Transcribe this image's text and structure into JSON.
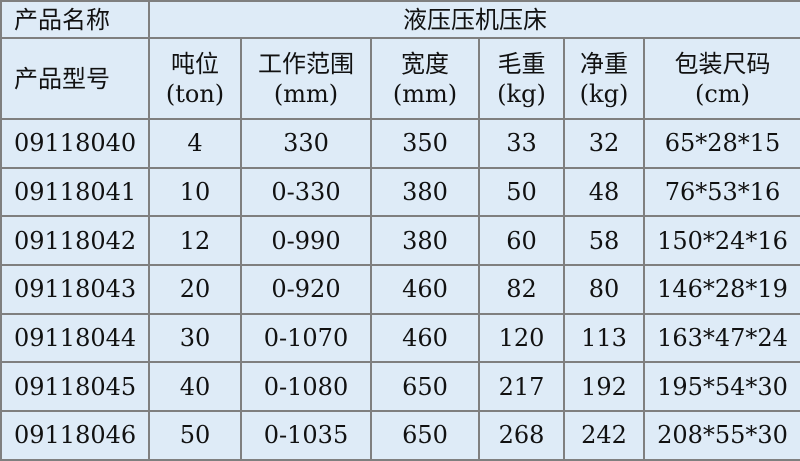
{
  "header": {
    "name_label": "产品名称",
    "name_value": "液压压机压床",
    "model_label": "产品型号",
    "columns": [
      {
        "title": "吨位",
        "unit": "(ton)"
      },
      {
        "title": "工作范围",
        "unit": "(mm)"
      },
      {
        "title": "宽度",
        "unit": "(mm)"
      },
      {
        "title": "毛重",
        "unit": "(kg)"
      },
      {
        "title": "净重",
        "unit": "(kg)"
      },
      {
        "title": "包装尺码",
        "unit": "(cm)"
      }
    ]
  },
  "rows": [
    [
      "09118040",
      "4",
      "330",
      "350",
      "33",
      "32",
      "65*28*15"
    ],
    [
      "09118041",
      "10",
      "0-330",
      "380",
      "50",
      "48",
      "76*53*16"
    ],
    [
      "09118042",
      "12",
      "0-990",
      "380",
      "60",
      "58",
      "150*24*16"
    ],
    [
      "09118043",
      "20",
      "0-920",
      "460",
      "82",
      "80",
      "146*28*19"
    ],
    [
      "09118044",
      "30",
      "0-1070",
      "460",
      "120",
      "113",
      "163*47*24"
    ],
    [
      "09118045",
      "40",
      "0-1080",
      "650",
      "217",
      "192",
      "195*54*30"
    ],
    [
      "09118046",
      "50",
      "0-1035",
      "650",
      "268",
      "242",
      "208*55*30"
    ]
  ],
  "colors": {
    "background": "#deebf7",
    "border": "#7f7f7f"
  }
}
